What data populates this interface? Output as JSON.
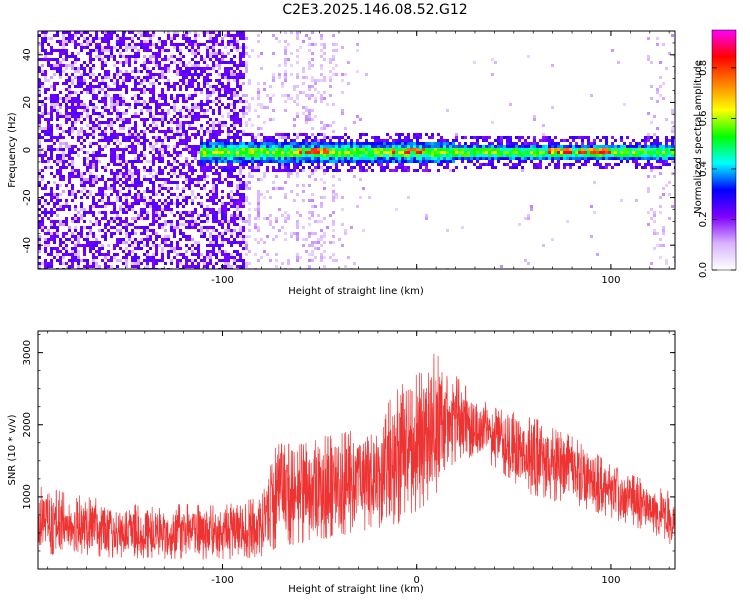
{
  "figure_title": "C2E3.2025.146.08.52.G12",
  "chart_data": [
    {
      "type": "heatmap",
      "title": "",
      "xlabel": "Height of straight line (km)",
      "ylabel": "Frequency (Hz)",
      "xlim": [
        -195,
        133
      ],
      "ylim": [
        -50,
        50
      ],
      "xticks": [
        -100,
        0,
        100
      ],
      "xtick_labels": [
        "-100",
        "",
        "100"
      ],
      "yticks": [
        -40,
        -20,
        0,
        20,
        40
      ],
      "ytick_labels": [
        "-40",
        "-20",
        "0",
        "20",
        "40"
      ],
      "colorbar": {
        "label": "Normalized spectral amplitude",
        "range": [
          0.0,
          0.95
        ],
        "ticks": [
          0.0,
          0.2,
          0.4,
          0.6,
          0.8
        ],
        "tick_labels": [
          "0.0",
          "0.2",
          "0.4",
          "0.6",
          "0.8"
        ],
        "colors": [
          "#ffffff",
          "#d9b3ff",
          "#7f00ff",
          "#0000ff",
          "#00ffff",
          "#00ff00",
          "#ffff00",
          "#ff8000",
          "#ff0000",
          "#ff00ff"
        ]
      },
      "ridge": {
        "frequency": -1,
        "start_height": -112,
        "noise_region": [
          -195,
          -88
        ],
        "strong_segments": [
          [
            -60,
            -45
          ],
          [
            -12,
            5
          ],
          [
            68,
            102
          ]
        ]
      },
      "grid": false
    },
    {
      "type": "line",
      "title": "",
      "xlabel": "Height of straight line (km)",
      "ylabel": "SNR (10 * v/v)",
      "xlim": [
        -195,
        133
      ],
      "ylim": [
        0,
        3300
      ],
      "xticks": [
        -100,
        0,
        100
      ],
      "xtick_labels": [
        "-100",
        "0",
        "100"
      ],
      "yticks": [
        1000,
        2000,
        3000
      ],
      "ytick_labels": [
        "1000",
        "2000",
        "3000"
      ],
      "color": "#ee3333",
      "grid": false,
      "envelope": {
        "x": [
          -195,
          -150,
          -100,
          -80,
          -72,
          -60,
          -40,
          -20,
          -5,
          5,
          10,
          20,
          30,
          40,
          60,
          80,
          100,
          120,
          133
        ],
        "low": [
          200,
          150,
          120,
          150,
          300,
          350,
          450,
          550,
          650,
          900,
          1050,
          1500,
          1550,
          1400,
          1000,
          900,
          700,
          500,
          300
        ],
        "high": [
          1150,
          900,
          900,
          1000,
          1750,
          1750,
          1900,
          2100,
          2700,
          2750,
          3100,
          2700,
          2400,
          2250,
          2100,
          1850,
          1450,
          1200,
          1050
        ]
      }
    }
  ]
}
